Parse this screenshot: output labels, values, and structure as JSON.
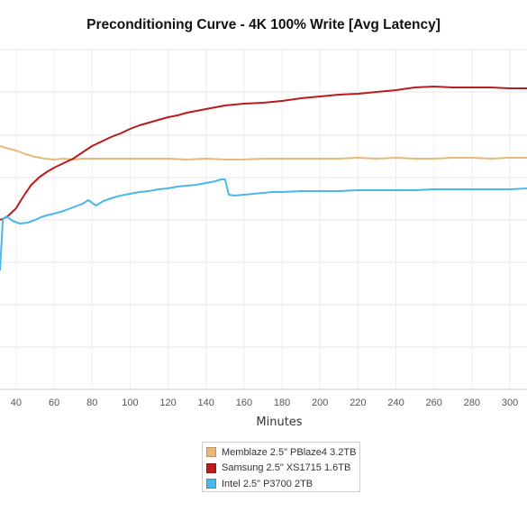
{
  "chart_data": {
    "type": "line",
    "title": "Preconditioning Curve - 4K 100% Write [Avg Latency]",
    "xlabel": "Minutes",
    "ylabel": "",
    "x_ticks": [
      "40",
      "60",
      "80",
      "100",
      "120",
      "140",
      "160",
      "180",
      "200",
      "220",
      "240",
      "260",
      "280",
      "300"
    ],
    "xlim": [
      31.5,
      309
    ],
    "grid": true,
    "legend_position": "bottom",
    "series": [
      {
        "name": "Memblaze 2.5\" PBlaze4 3.2TB",
        "color": "#e8b779",
        "points": [
          [
            31.5,
            162
          ],
          [
            36,
            165
          ],
          [
            40,
            167
          ],
          [
            45,
            171
          ],
          [
            50,
            174
          ],
          [
            55,
            176
          ],
          [
            60,
            177
          ],
          [
            65,
            176
          ],
          [
            70,
            177
          ],
          [
            75,
            176
          ],
          [
            80,
            176
          ],
          [
            90,
            176
          ],
          [
            100,
            176
          ],
          [
            110,
            176
          ],
          [
            120,
            176
          ],
          [
            130,
            177
          ],
          [
            140,
            176
          ],
          [
            150,
            177
          ],
          [
            160,
            177
          ],
          [
            170,
            176
          ],
          [
            180,
            176
          ],
          [
            190,
            176
          ],
          [
            200,
            176
          ],
          [
            210,
            176
          ],
          [
            220,
            175
          ],
          [
            230,
            176
          ],
          [
            240,
            175
          ],
          [
            250,
            176
          ],
          [
            260,
            176
          ],
          [
            270,
            175
          ],
          [
            280,
            175
          ],
          [
            290,
            176
          ],
          [
            300,
            175
          ],
          [
            309,
            175
          ]
        ]
      },
      {
        "name": "Samsung 2.5\" XS1715 1.6TB",
        "color": "#b81c1c",
        "points": [
          [
            31.5,
            244
          ],
          [
            35,
            241
          ],
          [
            38,
            235
          ],
          [
            40,
            231
          ],
          [
            42,
            224
          ],
          [
            45,
            214
          ],
          [
            48,
            205
          ],
          [
            52,
            197
          ],
          [
            56,
            191
          ],
          [
            60,
            186
          ],
          [
            65,
            181
          ],
          [
            70,
            176
          ],
          [
            75,
            169
          ],
          [
            80,
            162
          ],
          [
            85,
            157
          ],
          [
            90,
            152
          ],
          [
            95,
            148
          ],
          [
            100,
            143
          ],
          [
            105,
            139
          ],
          [
            110,
            136
          ],
          [
            115,
            133
          ],
          [
            120,
            130
          ],
          [
            125,
            128
          ],
          [
            130,
            125
          ],
          [
            135,
            123
          ],
          [
            140,
            121
          ],
          [
            145,
            119
          ],
          [
            150,
            117
          ],
          [
            155,
            116
          ],
          [
            160,
            115
          ],
          [
            170,
            114
          ],
          [
            180,
            112
          ],
          [
            190,
            109
          ],
          [
            200,
            107
          ],
          [
            210,
            105
          ],
          [
            220,
            104
          ],
          [
            230,
            102
          ],
          [
            240,
            100
          ],
          [
            250,
            97
          ],
          [
            260,
            96
          ],
          [
            270,
            97
          ],
          [
            280,
            97
          ],
          [
            290,
            97
          ],
          [
            300,
            98
          ],
          [
            309,
            98
          ]
        ]
      },
      {
        "name": "Intel 2.5\" P3700 2TB",
        "color": "#4bb8e8",
        "points": [
          [
            31.5,
            300
          ],
          [
            33,
            243
          ],
          [
            35,
            240
          ],
          [
            38,
            245
          ],
          [
            42,
            248
          ],
          [
            46,
            247
          ],
          [
            50,
            244
          ],
          [
            53,
            241
          ],
          [
            56,
            239
          ],
          [
            60,
            237
          ],
          [
            65,
            234
          ],
          [
            70,
            230
          ],
          [
            75,
            226
          ],
          [
            78,
            222
          ],
          [
            80,
            225
          ],
          [
            82,
            228
          ],
          [
            86,
            223
          ],
          [
            90,
            220
          ],
          [
            95,
            217
          ],
          [
            100,
            215
          ],
          [
            105,
            213
          ],
          [
            110,
            212
          ],
          [
            115,
            210
          ],
          [
            120,
            209
          ],
          [
            125,
            207
          ],
          [
            130,
            206
          ],
          [
            135,
            205
          ],
          [
            140,
            203
          ],
          [
            145,
            201
          ],
          [
            148,
            199
          ],
          [
            150,
            199
          ],
          [
            152,
            216
          ],
          [
            155,
            217
          ],
          [
            160,
            216
          ],
          [
            165,
            215
          ],
          [
            170,
            214
          ],
          [
            175,
            213
          ],
          [
            180,
            213
          ],
          [
            190,
            212
          ],
          [
            200,
            212
          ],
          [
            210,
            212
          ],
          [
            220,
            211
          ],
          [
            230,
            211
          ],
          [
            240,
            211
          ],
          [
            250,
            211
          ],
          [
            260,
            210
          ],
          [
            270,
            210
          ],
          [
            280,
            210
          ],
          [
            290,
            210
          ],
          [
            300,
            210
          ],
          [
            309,
            209
          ]
        ]
      }
    ]
  }
}
